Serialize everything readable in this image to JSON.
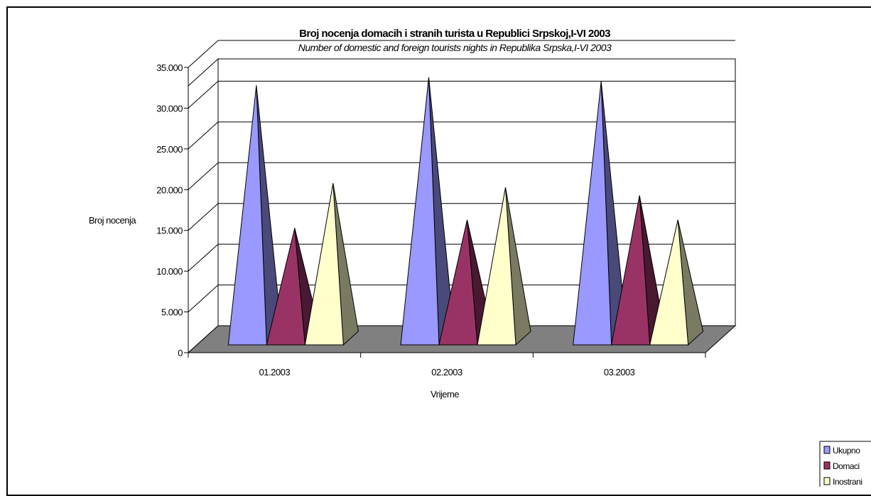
{
  "chart_data": {
    "type": "bar",
    "style": "3d-pyramid",
    "title": "Broj nocenja domacih i stranih turista u Republici Srpskoj,I-VI 2003",
    "subtitle": "Number of domestic and foreign tourists nights in Republika Srpska,I-VI 2003",
    "xlabel": "Vrijeme",
    "ylabel": "Broj nocenja",
    "categories": [
      "01.2003",
      "02.2003",
      "03.2003"
    ],
    "ylim": [
      0,
      35000
    ],
    "yticks": [
      0,
      5000,
      10000,
      15000,
      20000,
      25000,
      30000,
      35000
    ],
    "ytick_labels": [
      "0",
      "5.000",
      "10.000",
      "15.000",
      "20.000",
      "25.000",
      "30.000",
      "35.000"
    ],
    "grid": true,
    "legend_position": "bottom-right",
    "series": [
      {
        "name": "Ukupno",
        "values": [
          31000,
          32000,
          31500
        ],
        "color": "#9999FF"
      },
      {
        "name": "Domaci",
        "values": [
          13500,
          14500,
          17500
        ],
        "color": "#993366"
      },
      {
        "name": "Inostrani",
        "values": [
          19000,
          18500,
          14500
        ],
        "color": "#FFFFCC"
      }
    ],
    "floor_color": "#808080"
  }
}
